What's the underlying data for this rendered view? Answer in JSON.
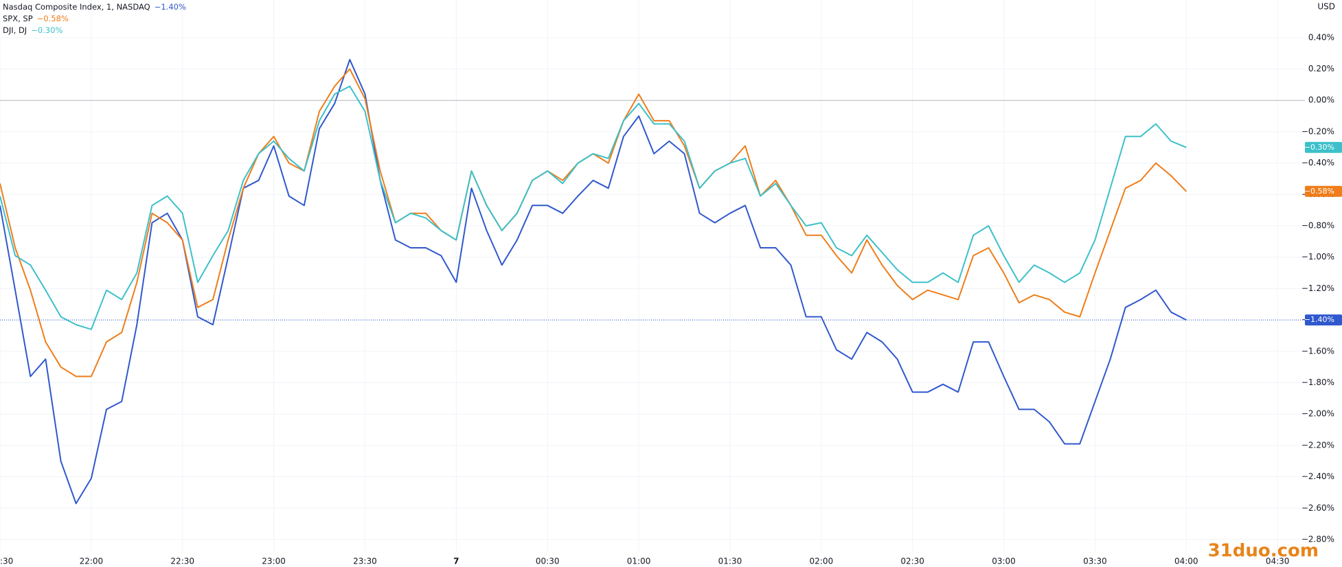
{
  "chart_data": {
    "type": "line",
    "currency": "USD",
    "watermark": "31duo.com",
    "x": [
      "21:30",
      "21:35",
      "21:40",
      "21:45",
      "21:50",
      "21:55",
      "22:00",
      "22:05",
      "22:10",
      "22:15",
      "22:20",
      "22:25",
      "22:30",
      "22:35",
      "22:40",
      "22:45",
      "22:50",
      "22:55",
      "23:00",
      "23:05",
      "23:10",
      "23:15",
      "23:20",
      "23:25",
      "23:30",
      "23:35",
      "23:40",
      "23:45",
      "23:50",
      "23:55",
      "00:00",
      "00:05",
      "00:10",
      "00:15",
      "00:20",
      "00:25",
      "00:30",
      "00:35",
      "00:40",
      "00:45",
      "00:50",
      "00:55",
      "01:00",
      "01:05",
      "01:10",
      "01:15",
      "01:20",
      "01:25",
      "01:30",
      "01:35",
      "01:40",
      "01:45",
      "01:50",
      "01:55",
      "02:00",
      "02:05",
      "02:10",
      "02:15",
      "02:20",
      "02:25",
      "02:30",
      "02:35",
      "02:40",
      "02:45",
      "02:50",
      "02:55",
      "03:00",
      "03:05",
      "03:10",
      "03:15",
      "03:20",
      "03:25",
      "03:30",
      "03:35",
      "03:40",
      "03:45",
      "03:50",
      "03:55",
      "04:00"
    ],
    "xlim": [
      "21:30",
      "04:39"
    ],
    "xticks": [
      {
        "value": "21:30",
        "label": ":30"
      },
      {
        "value": "22:00",
        "label": "22:00"
      },
      {
        "value": "22:30",
        "label": "22:30"
      },
      {
        "value": "23:00",
        "label": "23:00"
      },
      {
        "value": "23:30",
        "label": "23:30"
      },
      {
        "value": "00:00",
        "label": "7"
      },
      {
        "value": "00:30",
        "label": "00:30"
      },
      {
        "value": "01:00",
        "label": "01:00"
      },
      {
        "value": "01:30",
        "label": "01:30"
      },
      {
        "value": "02:00",
        "label": "02:00"
      },
      {
        "value": "02:30",
        "label": "02:30"
      },
      {
        "value": "03:00",
        "label": "03:00"
      },
      {
        "value": "03:30",
        "label": "03:30"
      },
      {
        "value": "04:00",
        "label": "04:00"
      },
      {
        "value": "04:30",
        "label": "04:30"
      }
    ],
    "ylim": [
      -2.87,
      0.64
    ],
    "yticks": [
      {
        "value": 0.4,
        "label": "0.40%"
      },
      {
        "value": 0.2,
        "label": "0.20%"
      },
      {
        "value": 0,
        "label": "0.00%"
      },
      {
        "value": -0.2,
        "label": "−0.20%"
      },
      {
        "value": -0.4,
        "label": "−0.40%"
      },
      {
        "value": -0.6,
        "label": "−0.60%"
      },
      {
        "value": -0.8,
        "label": "−0.80%"
      },
      {
        "value": -1.0,
        "label": "−1.00%"
      },
      {
        "value": -1.2,
        "label": "−1.20%"
      },
      {
        "value": -1.4,
        "label": "−1.40%"
      },
      {
        "value": -1.6,
        "label": "−1.60%"
      },
      {
        "value": -1.8,
        "label": "−1.80%"
      },
      {
        "value": -2.0,
        "label": "−2.00%"
      },
      {
        "value": -2.2,
        "label": "−2.20%"
      },
      {
        "value": -2.4,
        "label": "−2.40%"
      },
      {
        "value": -2.6,
        "label": "−2.60%"
      },
      {
        "value": -2.8,
        "label": "−2.80%"
      }
    ],
    "grid": true,
    "series": [
      {
        "name": "Nasdaq Composite Index, 1, NASDAQ",
        "color": "#2f58cd",
        "last_value_label": "−1.40%",
        "values": [
          -0.67,
          -1.21,
          -1.76,
          -1.65,
          -2.3,
          -2.57,
          -2.41,
          -1.97,
          -1.92,
          -1.43,
          -0.78,
          -0.72,
          -0.89,
          -1.38,
          -1.43,
          -1.0,
          -0.56,
          -0.51,
          -0.29,
          -0.61,
          -0.67,
          -0.18,
          -0.02,
          0.26,
          0.04,
          -0.51,
          -0.89,
          -0.94,
          -0.94,
          -0.99,
          -1.16,
          -0.56,
          -0.83,
          -1.05,
          -0.89,
          -0.67,
          -0.67,
          -0.72,
          -0.61,
          -0.51,
          -0.56,
          -0.23,
          -0.1,
          -0.34,
          -0.26,
          -0.34,
          -0.72,
          -0.78,
          -0.72,
          -0.67,
          -0.94,
          -0.94,
          -1.05,
          -1.38,
          -1.38,
          -1.59,
          -1.65,
          -1.48,
          -1.54,
          -1.65,
          -1.86,
          -1.86,
          -1.81,
          -1.86,
          -1.54,
          -1.54,
          -1.76,
          -1.97,
          -1.97,
          -2.05,
          -2.19,
          -2.19,
          -1.92,
          -1.65,
          -1.32,
          -1.27,
          -1.21,
          -1.35,
          -1.4
        ]
      },
      {
        "name": "SPX, SP",
        "color": "#ef7d1a",
        "last_value_label": "−0.58%",
        "values": [
          -0.53,
          -0.94,
          -1.21,
          -1.54,
          -1.7,
          -1.76,
          -1.76,
          -1.54,
          -1.48,
          -1.16,
          -0.72,
          -0.78,
          -0.89,
          -1.32,
          -1.27,
          -0.89,
          -0.56,
          -0.34,
          -0.23,
          -0.4,
          -0.45,
          -0.07,
          0.09,
          0.2,
          0.01,
          -0.45,
          -0.78,
          -0.72,
          -0.72,
          -0.83,
          -0.89,
          -0.45,
          -0.67,
          -0.83,
          -0.72,
          -0.51,
          -0.45,
          -0.51,
          -0.4,
          -0.34,
          -0.4,
          -0.13,
          0.04,
          -0.13,
          -0.13,
          -0.29,
          -0.56,
          -0.45,
          -0.4,
          -0.29,
          -0.61,
          -0.51,
          -0.67,
          -0.86,
          -0.86,
          -0.99,
          -1.1,
          -0.89,
          -1.05,
          -1.18,
          -1.27,
          -1.21,
          -1.24,
          -1.27,
          -0.99,
          -0.94,
          -1.1,
          -1.29,
          -1.24,
          -1.27,
          -1.35,
          -1.38,
          -1.1,
          -0.83,
          -0.56,
          -0.51,
          -0.4,
          -0.48,
          -0.58
        ]
      },
      {
        "name": "DJI, DJ",
        "color": "#3cc0c9",
        "last_value_label": "−0.30%",
        "values": [
          -0.61,
          -0.99,
          -1.05,
          -1.21,
          -1.38,
          -1.43,
          -1.46,
          -1.21,
          -1.27,
          -1.1,
          -0.67,
          -0.61,
          -0.72,
          -1.16,
          -0.99,
          -0.83,
          -0.51,
          -0.34,
          -0.26,
          -0.37,
          -0.45,
          -0.13,
          0.04,
          0.09,
          -0.07,
          -0.51,
          -0.78,
          -0.72,
          -0.75,
          -0.83,
          -0.89,
          -0.45,
          -0.67,
          -0.83,
          -0.72,
          -0.51,
          -0.45,
          -0.53,
          -0.4,
          -0.34,
          -0.37,
          -0.13,
          -0.02,
          -0.15,
          -0.15,
          -0.26,
          -0.56,
          -0.45,
          -0.4,
          -0.37,
          -0.61,
          -0.53,
          -0.67,
          -0.8,
          -0.78,
          -0.94,
          -0.99,
          -0.86,
          -0.97,
          -1.08,
          -1.16,
          -1.16,
          -1.1,
          -1.16,
          -0.86,
          -0.8,
          -0.99,
          -1.16,
          -1.05,
          -1.1,
          -1.16,
          -1.1,
          -0.89,
          -0.56,
          -0.23,
          -0.23,
          -0.15,
          -0.26,
          -0.3
        ]
      }
    ]
  }
}
